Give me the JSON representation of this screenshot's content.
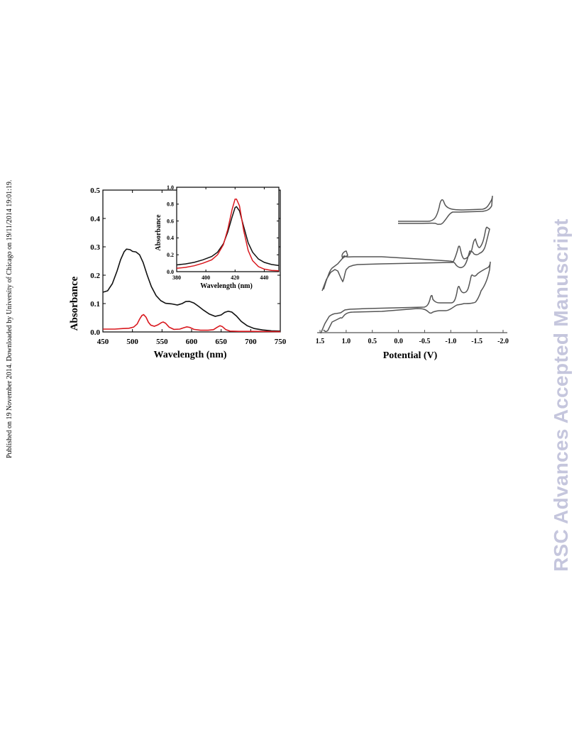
{
  "page": {
    "side_note": "Published on 19 November 2014. Downloaded by University of Chicago on 19/11/2014 19:01:19.",
    "watermark": "RSC Advances Accepted Manuscript"
  },
  "chart_data": [
    {
      "type": "line",
      "xlabel": "Wavelength (nm)",
      "ylabel": "Absorbance",
      "xlim": [
        450,
        750
      ],
      "ylim": [
        0,
        0.5
      ],
      "x_ticks": [
        "450",
        "500",
        "550",
        "600",
        "650",
        "700",
        "750"
      ],
      "y_ticks": [
        "0.0",
        "0.1",
        "0.2",
        "0.3",
        "0.4",
        "0.5"
      ],
      "colors": {
        "black": "#111111",
        "red": "#d9181e"
      },
      "series": [
        {
          "color": "black",
          "points": [
            [
              450,
              0.14
            ],
            [
              458,
              0.145
            ],
            [
              466,
              0.17
            ],
            [
              474,
              0.215
            ],
            [
              480,
              0.255
            ],
            [
              486,
              0.283
            ],
            [
              490,
              0.292
            ],
            [
              496,
              0.29
            ],
            [
              500,
              0.284
            ],
            [
              506,
              0.282
            ],
            [
              512,
              0.272
            ],
            [
              518,
              0.245
            ],
            [
              525,
              0.2
            ],
            [
              532,
              0.16
            ],
            [
              540,
              0.128
            ],
            [
              548,
              0.11
            ],
            [
              556,
              0.101
            ],
            [
              566,
              0.099
            ],
            [
              576,
              0.095
            ],
            [
              584,
              0.1
            ],
            [
              590,
              0.107
            ],
            [
              596,
              0.108
            ],
            [
              604,
              0.102
            ],
            [
              612,
              0.09
            ],
            [
              620,
              0.077
            ],
            [
              630,
              0.063
            ],
            [
              640,
              0.055
            ],
            [
              650,
              0.06
            ],
            [
              656,
              0.069
            ],
            [
              662,
              0.073
            ],
            [
              668,
              0.07
            ],
            [
              676,
              0.056
            ],
            [
              684,
              0.037
            ],
            [
              694,
              0.022
            ],
            [
              706,
              0.012
            ],
            [
              720,
              0.007
            ],
            [
              735,
              0.004
            ],
            [
              750,
              0.003
            ]
          ]
        },
        {
          "color": "red",
          "points": [
            [
              450,
              0.01
            ],
            [
              470,
              0.01
            ],
            [
              484,
              0.012
            ],
            [
              494,
              0.013
            ],
            [
              502,
              0.017
            ],
            [
              508,
              0.028
            ],
            [
              512,
              0.045
            ],
            [
              516,
              0.058
            ],
            [
              519,
              0.061
            ],
            [
              523,
              0.052
            ],
            [
              527,
              0.034
            ],
            [
              531,
              0.024
            ],
            [
              537,
              0.02
            ],
            [
              543,
              0.025
            ],
            [
              549,
              0.033
            ],
            [
              552,
              0.035
            ],
            [
              556,
              0.031
            ],
            [
              562,
              0.017
            ],
            [
              570,
              0.009
            ],
            [
              580,
              0.01
            ],
            [
              587,
              0.015
            ],
            [
              592,
              0.018
            ],
            [
              597,
              0.016
            ],
            [
              604,
              0.009
            ],
            [
              615,
              0.006
            ],
            [
              628,
              0.006
            ],
            [
              637,
              0.008
            ],
            [
              643,
              0.016
            ],
            [
              648,
              0.022
            ],
            [
              652,
              0.019
            ],
            [
              658,
              0.008
            ],
            [
              665,
              0.003
            ],
            [
              680,
              0.002
            ],
            [
              700,
              0.002
            ],
            [
              750,
              0.001
            ]
          ]
        }
      ]
    },
    {
      "type": "line",
      "xlabel": "Wavelength (nm)",
      "ylabel": "Absorbance",
      "xlim": [
        380,
        450
      ],
      "ylim": [
        0,
        1.0
      ],
      "x_ticks": [
        "380",
        "400",
        "420",
        "440"
      ],
      "y_ticks": [
        "0.0",
        "0.2",
        "0.4",
        "0.6",
        "0.8",
        "1.0"
      ],
      "series": [
        {
          "color": "black",
          "points": [
            [
              380,
              0.08
            ],
            [
              386,
              0.092
            ],
            [
              392,
              0.11
            ],
            [
              398,
              0.14
            ],
            [
              404,
              0.18
            ],
            [
              408,
              0.23
            ],
            [
              412,
              0.33
            ],
            [
              415,
              0.47
            ],
            [
              418,
              0.65
            ],
            [
              420,
              0.76
            ],
            [
              421,
              0.77
            ],
            [
              423,
              0.72
            ],
            [
              426,
              0.53
            ],
            [
              429,
              0.34
            ],
            [
              432,
              0.23
            ],
            [
              436,
              0.15
            ],
            [
              440,
              0.11
            ],
            [
              445,
              0.085
            ],
            [
              450,
              0.072
            ]
          ]
        },
        {
          "color": "red",
          "points": [
            [
              380,
              0.04
            ],
            [
              386,
              0.05
            ],
            [
              392,
              0.07
            ],
            [
              398,
              0.1
            ],
            [
              404,
              0.14
            ],
            [
              408,
              0.2
            ],
            [
              412,
              0.32
            ],
            [
              415,
              0.5
            ],
            [
              418,
              0.74
            ],
            [
              420,
              0.86
            ],
            [
              421,
              0.86
            ],
            [
              423,
              0.78
            ],
            [
              426,
              0.48
            ],
            [
              429,
              0.25
            ],
            [
              432,
              0.13
            ],
            [
              436,
              0.06
            ],
            [
              440,
              0.03
            ],
            [
              445,
              0.015
            ],
            [
              450,
              0.01
            ]
          ]
        }
      ]
    },
    {
      "type": "line",
      "xlabel": "Potential (V)",
      "ylabel": "",
      "xlim": [
        1.5,
        -2.0
      ],
      "x_ticks": [
        "1.5",
        "1.0",
        "0.5",
        "0.0",
        "-0.5",
        "-1.0",
        "-1.5",
        "-2.0"
      ],
      "notes": "cyclic voltammograms, three stacked traces (current axis unlabeled)"
    }
  ]
}
